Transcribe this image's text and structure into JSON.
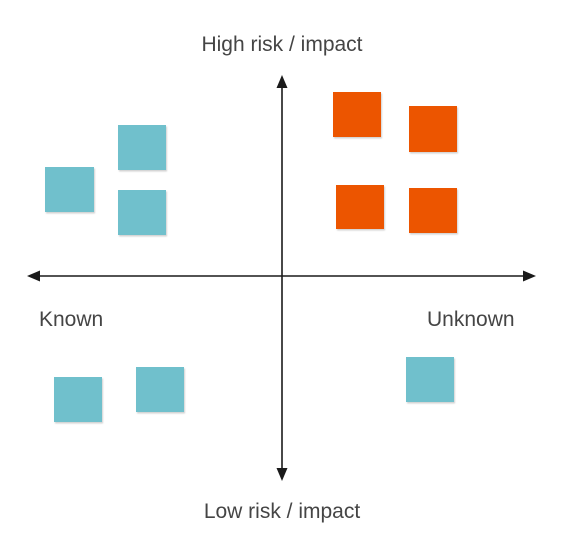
{
  "labels": {
    "top": "High risk / impact",
    "bottom": "Low risk / impact",
    "left": "Known",
    "right": "Unknown"
  },
  "colors": {
    "axis": "#1a1a1a",
    "known_note": "#6fc0cc",
    "risk_note": "#ec5500",
    "label_text": "#454545"
  },
  "quadrants": {
    "top_left": {
      "notes": [
        "teal",
        "teal",
        "teal"
      ]
    },
    "top_right": {
      "notes": [
        "orange",
        "orange",
        "orange",
        "orange"
      ]
    },
    "bottom_left": {
      "notes": [
        "teal",
        "teal"
      ]
    },
    "bottom_right": {
      "notes": [
        "teal"
      ]
    }
  }
}
